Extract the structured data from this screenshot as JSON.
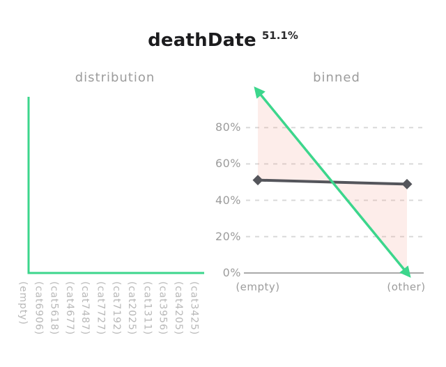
{
  "header": {
    "title": "deathDate",
    "stat": "51.1%"
  },
  "colors": {
    "accent_green": "#3cd68c",
    "dark_series": "#54555b",
    "band_fill": "rgba(243,163,151,0.2)",
    "grid": "#d9d9d9",
    "axis": "#a9a9a9",
    "muted_text": "#9c9c9c",
    "faint_text": "#b8b8b8",
    "title_text": "#1c1c1e"
  },
  "chart_data": [
    {
      "name": "distribution",
      "type": "line",
      "title": "distribution",
      "categories": [
        "(empty)",
        "(cat6906)",
        "(cat5618)",
        "(cat4677)",
        "(cat7487)",
        "(cat7727)",
        "(cat7192)",
        "(cat2025)",
        "(cat1311)",
        "(cat3956)",
        "(cat4205)",
        "(cat3425)"
      ],
      "ylim": [
        0,
        100
      ],
      "y_axis": "hidden",
      "grid": false,
      "series": [
        {
          "name": "value-distribution",
          "color": "#3cd68c",
          "values_pct": [
            100,
            0,
            0,
            0,
            0,
            0,
            0,
            0,
            0,
            0,
            0,
            0
          ],
          "line_path_pct": [
            [
              0,
              100
            ],
            [
              0,
              0
            ],
            [
              100,
              0
            ]
          ]
        }
      ]
    },
    {
      "name": "binned",
      "type": "line",
      "title": "binned",
      "categories": [
        "(empty)",
        "(other)"
      ],
      "ylim": [
        0,
        100
      ],
      "grid": "horizontal-dashed",
      "y_ticks": [
        {
          "label": "0%",
          "value": 0
        },
        {
          "label": "20%",
          "value": 20
        },
        {
          "label": "40%",
          "value": 40
        },
        {
          "label": "60%",
          "value": 60
        },
        {
          "label": "80%",
          "value": 80
        }
      ],
      "series": [
        {
          "name": "binned-values",
          "color": "#3cd68c",
          "values_pct": [
            100,
            0
          ],
          "marker": "arrow-both-ends"
        },
        {
          "name": "reference",
          "color": "#54555b",
          "values_pct": [
            51.1,
            48.9
          ],
          "marker": "diamond"
        }
      ],
      "fill_between": {
        "between": [
          "binned-values",
          "reference"
        ],
        "color": "rgba(243,163,151,0.2)"
      }
    }
  ]
}
